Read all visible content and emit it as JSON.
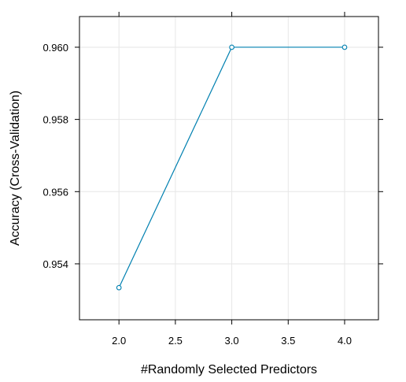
{
  "chart_data": {
    "type": "line",
    "title": "",
    "xlabel": "#Randomly Selected Predictors",
    "ylabel": "Accuracy (Cross-Validation)",
    "x": [
      2.0,
      3.0,
      4.0
    ],
    "series": [
      {
        "values": [
          0.95334,
          0.96,
          0.96
        ],
        "color": "#0080B0",
        "marker": "circle-open"
      }
    ],
    "xlim": [
      1.65,
      4.3
    ],
    "ylim": [
      0.95245,
      0.96085
    ],
    "xticks": [
      2.0,
      2.5,
      3.0,
      3.5,
      4.0
    ],
    "xtick_labels": [
      "2.0",
      "2.5",
      "3.0",
      "3.5",
      "4.0"
    ],
    "yticks": [
      0.954,
      0.956,
      0.958,
      0.96
    ],
    "ytick_labels": [
      "0.954",
      "0.956",
      "0.958",
      "0.960"
    ],
    "grid": true,
    "grid_color": "#E6E6E6",
    "legend": "none"
  }
}
